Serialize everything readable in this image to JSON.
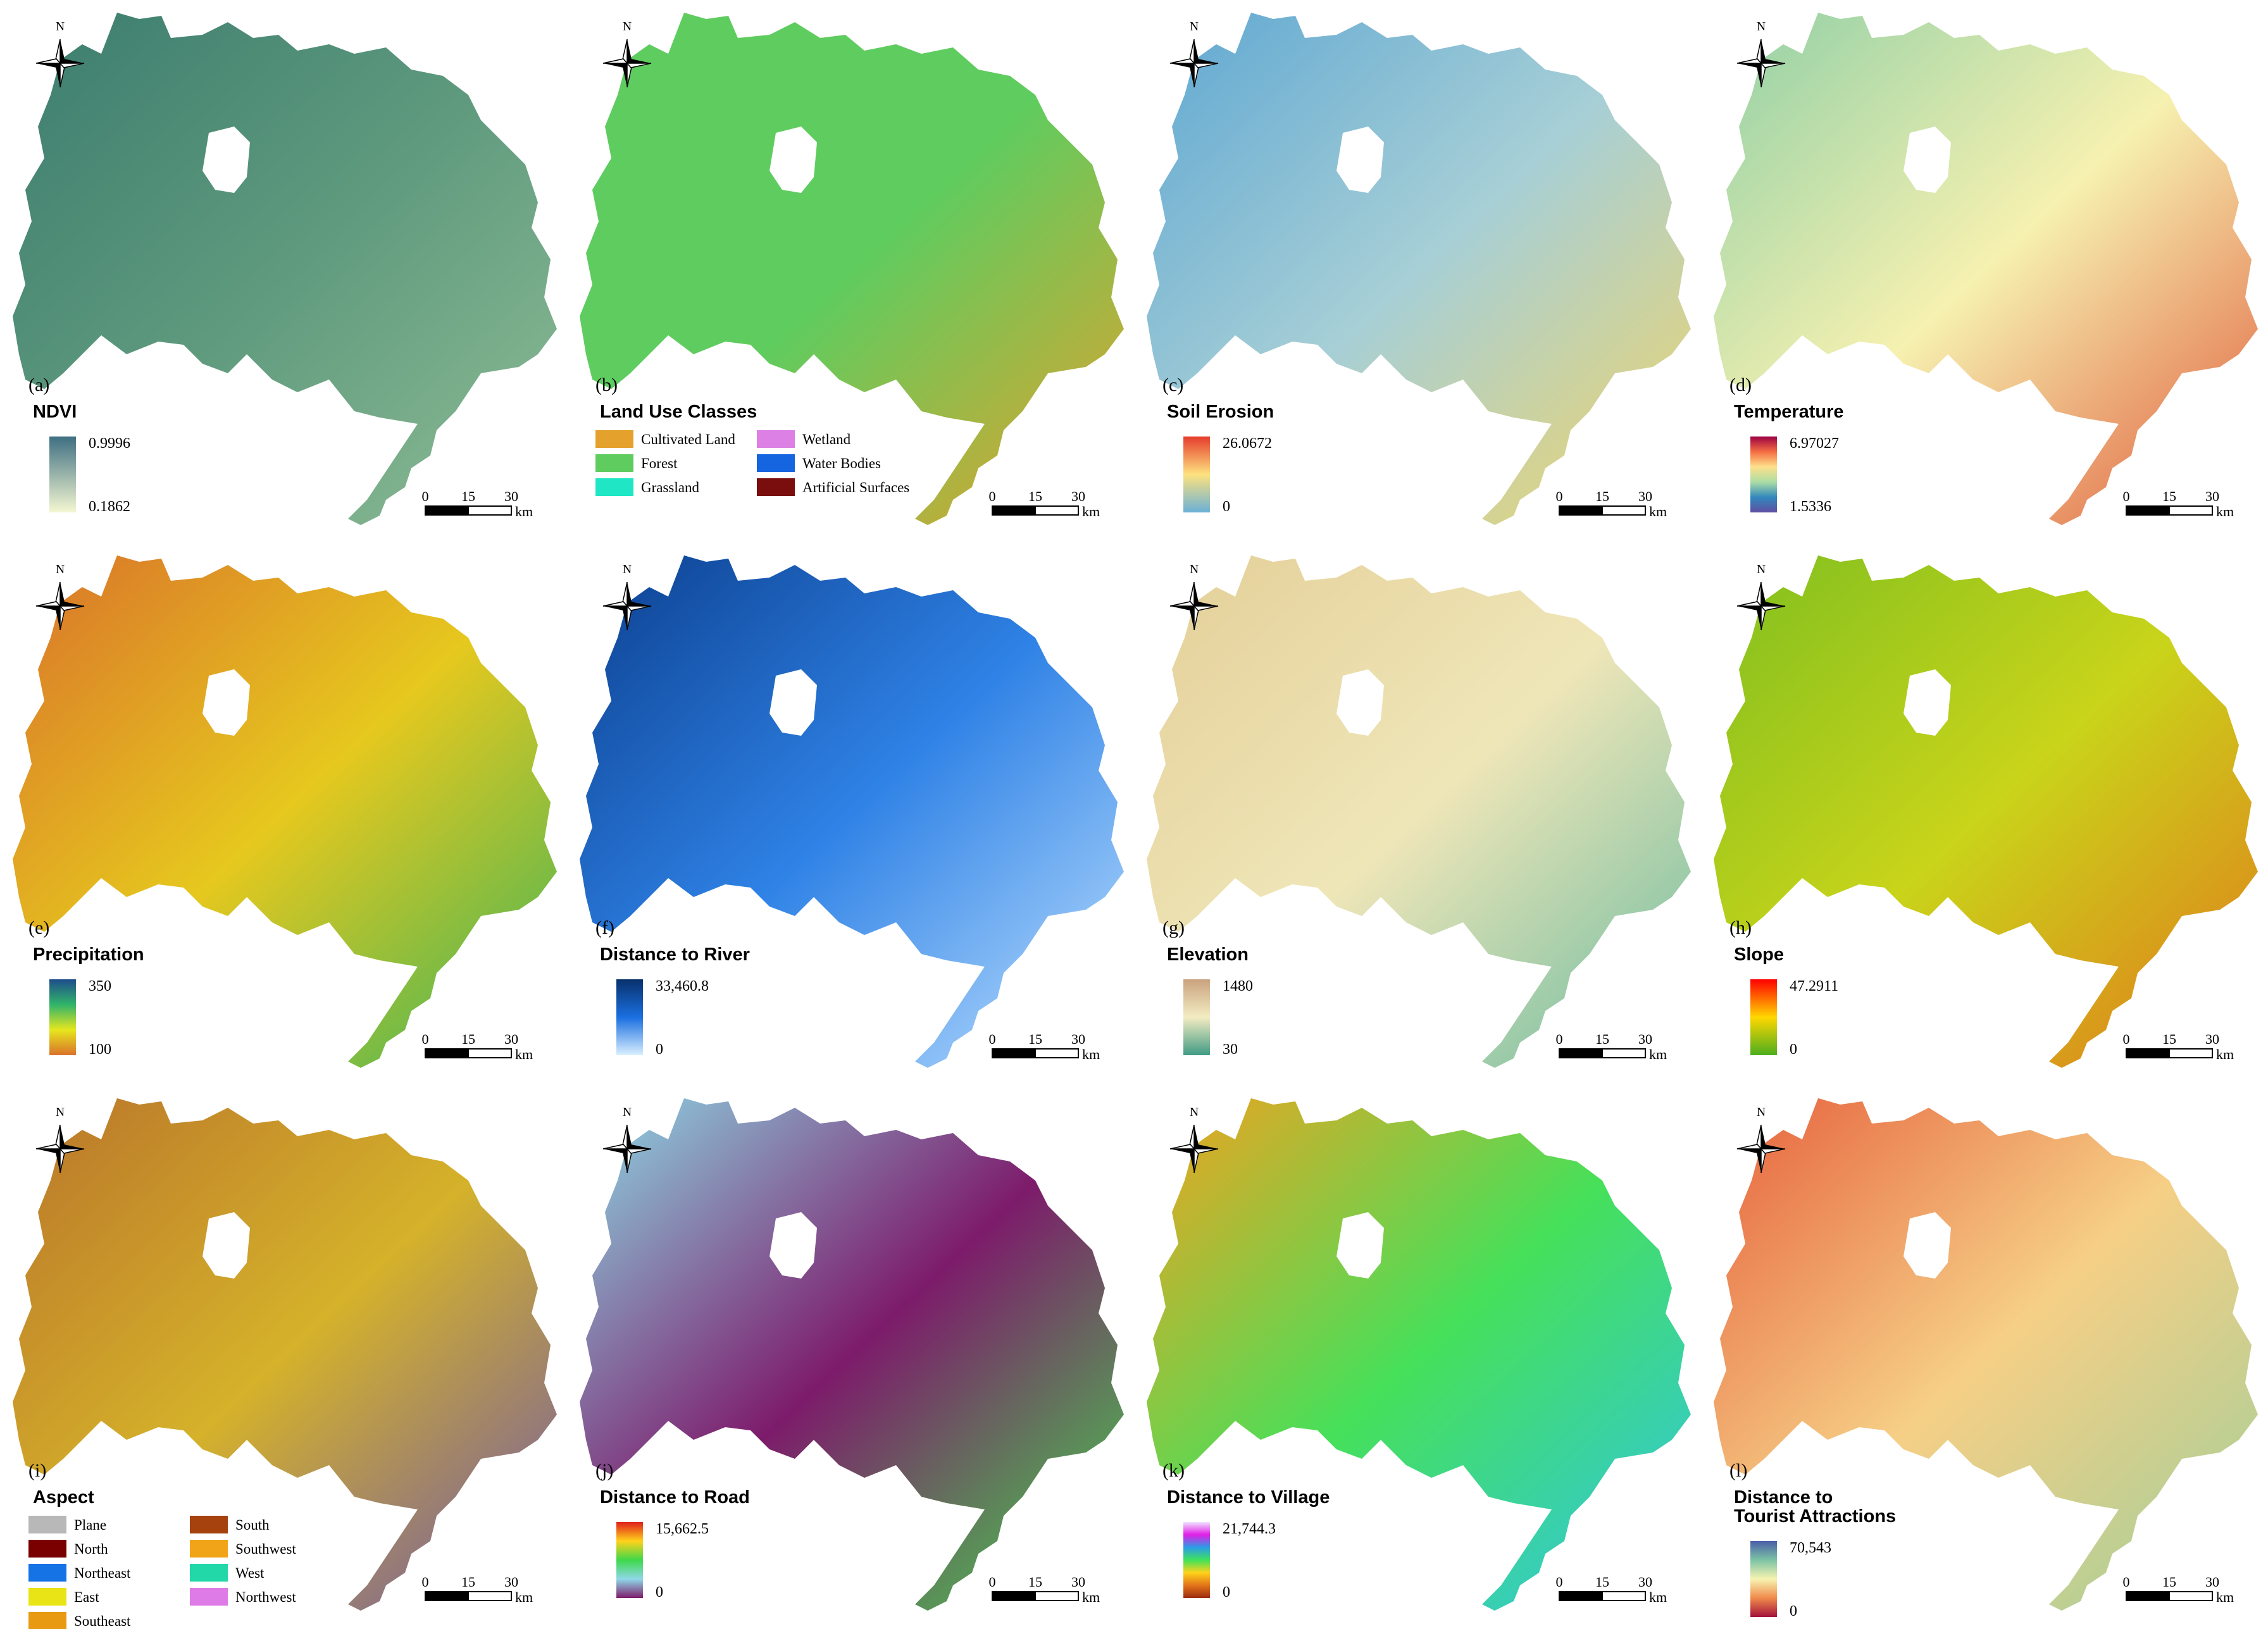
{
  "north_label": "N",
  "scale": {
    "ticks": [
      "0",
      "15",
      "30"
    ],
    "unit": "km"
  },
  "panels": [
    {
      "id": "a",
      "tag": "(a)",
      "title": [
        "NDVI"
      ],
      "kind": "continuous",
      "legend": {
        "max": "0.9996",
        "min": "0.1862",
        "colors": [
          "#3e6f82",
          "#f4f7d2"
        ]
      },
      "fill": [
        "#3b7c6e",
        "#5f9a7e",
        "#8fbd95"
      ]
    },
    {
      "id": "b",
      "tag": "(b)",
      "title": [
        "Land Use Classes"
      ],
      "kind": "categorical",
      "classes": [
        {
          "label": "Cultivated Land",
          "color": "#e4a12b"
        },
        {
          "label": "Forest",
          "color": "#5fcc5f"
        },
        {
          "label": "Grassland",
          "color": "#1fe6c4"
        },
        {
          "label": "Wetland",
          "color": "#dd80e6"
        },
        {
          "label": "Water Bodies",
          "color": "#1565e0"
        },
        {
          "label": "Artificial Surfaces",
          "color": "#7a0e0e"
        }
      ],
      "fill": [
        "#5fcc5f",
        "#5fcc5f",
        "#e4a12b"
      ]
    },
    {
      "id": "c",
      "tag": "(c)",
      "title": [
        "Soil Erosion"
      ],
      "kind": "continuous",
      "legend": {
        "max": "26.0672",
        "min": "0",
        "colors": [
          "#e63c2c",
          "#fde27f",
          "#6ab0d5"
        ]
      },
      "fill": [
        "#5ea7d2",
        "#a7cfd6",
        "#f0d56a"
      ]
    },
    {
      "id": "d",
      "tag": "(d)",
      "title": [
        "Temperature"
      ],
      "kind": "continuous",
      "legend": {
        "max": "6.97027",
        "min": "1.5336",
        "colors": [
          "#9e0142",
          "#f46d43",
          "#fee08b",
          "#abdda4",
          "#3288bd",
          "#5e4fa2"
        ]
      },
      "fill": [
        "#8fcfa6",
        "#f6f1b0",
        "#e05a3a"
      ]
    },
    {
      "id": "e",
      "tag": "(e)",
      "title": [
        "Precipitation"
      ],
      "kind": "continuous",
      "legend": {
        "max": "350",
        "min": "100",
        "colors": [
          "#1d4d8c",
          "#31b46a",
          "#e6e61e",
          "#d9722a"
        ]
      },
      "fill": [
        "#d9722a",
        "#e6c81e",
        "#3cb45a"
      ]
    },
    {
      "id": "f",
      "tag": "(f)",
      "title": [
        "Distance to River"
      ],
      "kind": "continuous",
      "legend": {
        "max": "33,460.8",
        "min": "0",
        "colors": [
          "#08306b",
          "#1a6fe0",
          "#d9efff"
        ]
      },
      "fill": [
        "#0b3f8f",
        "#2f82e6",
        "#bfe1ff"
      ]
    },
    {
      "id": "g",
      "tag": "(g)",
      "title": [
        "Elevation"
      ],
      "kind": "continuous",
      "legend": {
        "max": "1480",
        "min": "30",
        "colors": [
          "#c9a27e",
          "#f3ecc2",
          "#3f9b84"
        ]
      },
      "fill": [
        "#e4cf98",
        "#efe6b8",
        "#6cbba0"
      ]
    },
    {
      "id": "h",
      "tag": "(h)",
      "title": [
        "Slope"
      ],
      "kind": "continuous",
      "legend": {
        "max": "47.2911",
        "min": "0",
        "colors": [
          "#ff0000",
          "#ffd700",
          "#4cae1e"
        ]
      },
      "fill": [
        "#7fbf1f",
        "#c9d41a",
        "#e2781c"
      ]
    },
    {
      "id": "i",
      "tag": "(i)",
      "title": [
        "Aspect"
      ],
      "kind": "categorical",
      "classes": [
        {
          "label": "Plane",
          "color": "#b8b8b8"
        },
        {
          "label": "North",
          "color": "#7a0000"
        },
        {
          "label": "Northeast",
          "color": "#1573e6"
        },
        {
          "label": "East",
          "color": "#e9e416"
        },
        {
          "label": "Southeast",
          "color": "#e89a12"
        },
        {
          "label": "South",
          "color": "#a5420e"
        },
        {
          "label": "Southwest",
          "color": "#f2a418"
        },
        {
          "label": "West",
          "color": "#22d7a8"
        },
        {
          "label": "Northwest",
          "color": "#de7be6"
        }
      ],
      "fill": [
        "#b9742a",
        "#d5b22a",
        "#6e58a8"
      ]
    },
    {
      "id": "j",
      "tag": "(j)",
      "title": [
        "Distance to Road"
      ],
      "kind": "continuous",
      "legend": {
        "max": "15,662.5",
        "min": "0",
        "colors": [
          "#e0201b",
          "#ffd21a",
          "#3ed84a",
          "#8fd8e8",
          "#7d1b6b"
        ]
      },
      "fill": [
        "#8edbe6",
        "#7d1b6b",
        "#45d84c"
      ]
    },
    {
      "id": "k",
      "tag": "(k)",
      "title": [
        "Distance to Village"
      ],
      "kind": "continuous",
      "legend": {
        "max": "21,744.3",
        "min": "0",
        "colors": [
          "#f0e1ff",
          "#e11ee6",
          "#2a9de6",
          "#3fe35a",
          "#ffd21a",
          "#e2741a",
          "#9c2b0f"
        ]
      },
      "fill": [
        "#f2a21e",
        "#46e05a",
        "#2fc5e6"
      ]
    },
    {
      "id": "l",
      "tag": "(l)",
      "title": [
        "Distance to",
        "Tourist Attractions"
      ],
      "kind": "continuous",
      "legend": {
        "max": "70,543",
        "min": "0",
        "colors": [
          "#4a5fa8",
          "#7cc3a5",
          "#f7f3b0",
          "#f08a4b",
          "#a3123b"
        ]
      },
      "fill": [
        "#e6603c",
        "#f6cf86",
        "#9ecf9a"
      ]
    }
  ]
}
